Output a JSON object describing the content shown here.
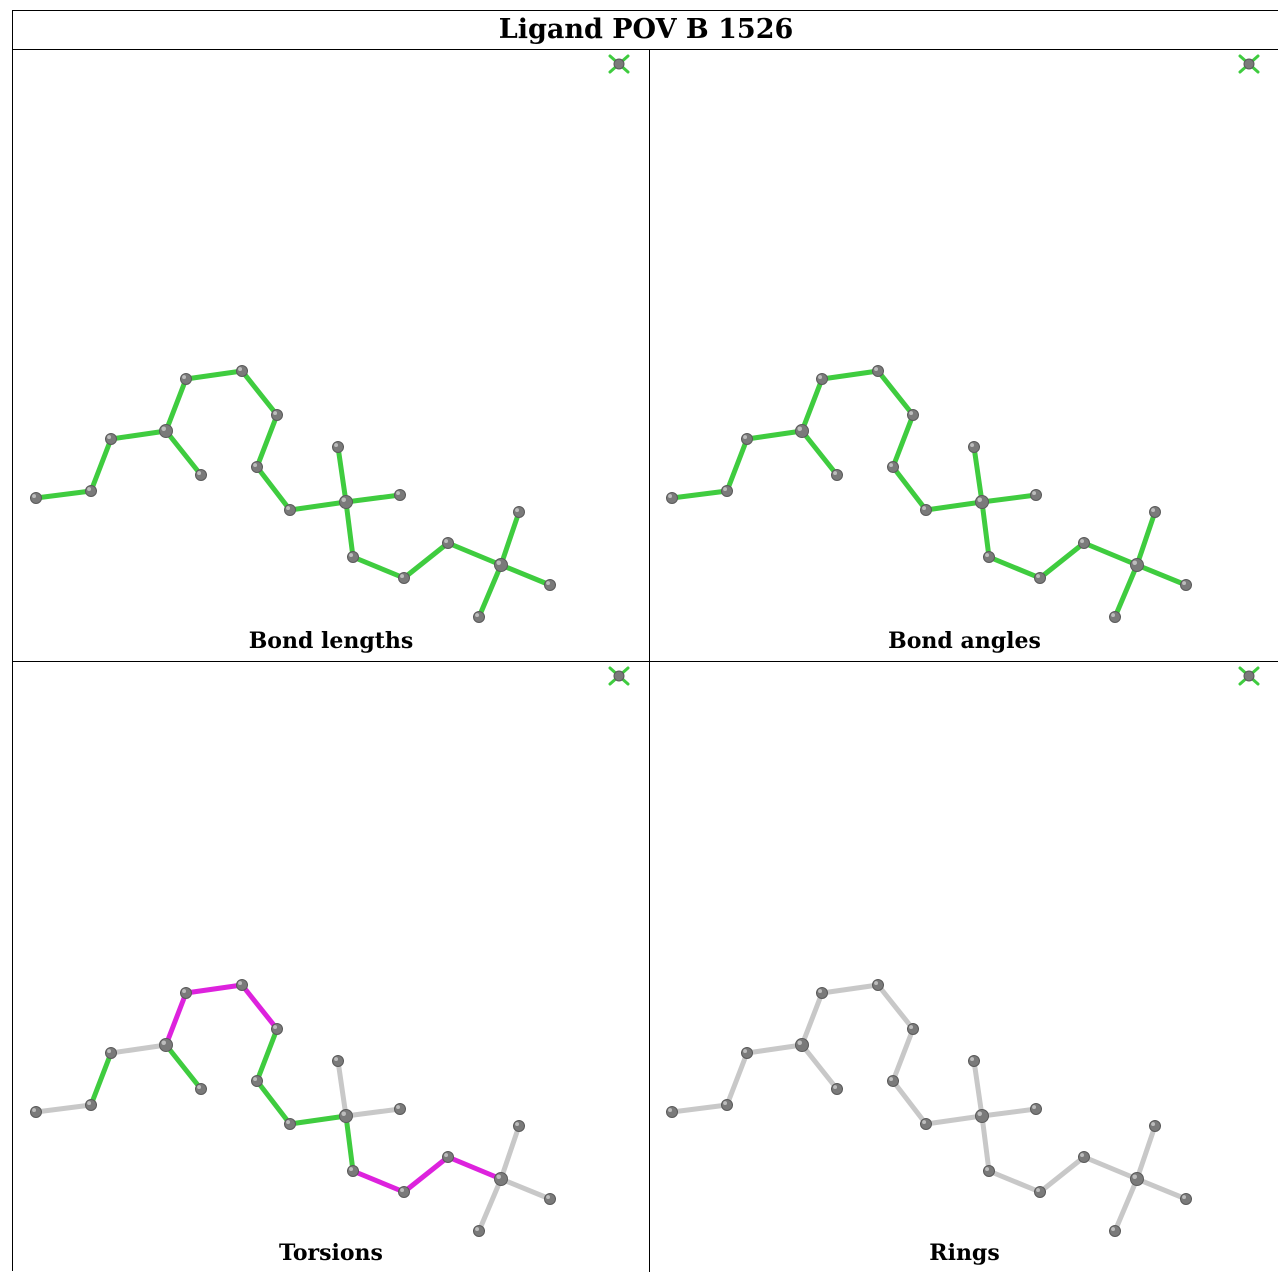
{
  "title": "Ligand POV B 1526",
  "panels": [
    {
      "caption": "Bond lengths",
      "mode": "lengths"
    },
    {
      "caption": "Bond angles",
      "mode": "angles"
    },
    {
      "caption": "Torsions",
      "mode": "torsions"
    },
    {
      "caption": "Rings",
      "mode": "rings"
    }
  ],
  "colors": {
    "ok": "#3fcc3f",
    "outlier": "#dd22dd",
    "neutral": "#c8c8c8",
    "atom": "#7a7a7a"
  }
}
